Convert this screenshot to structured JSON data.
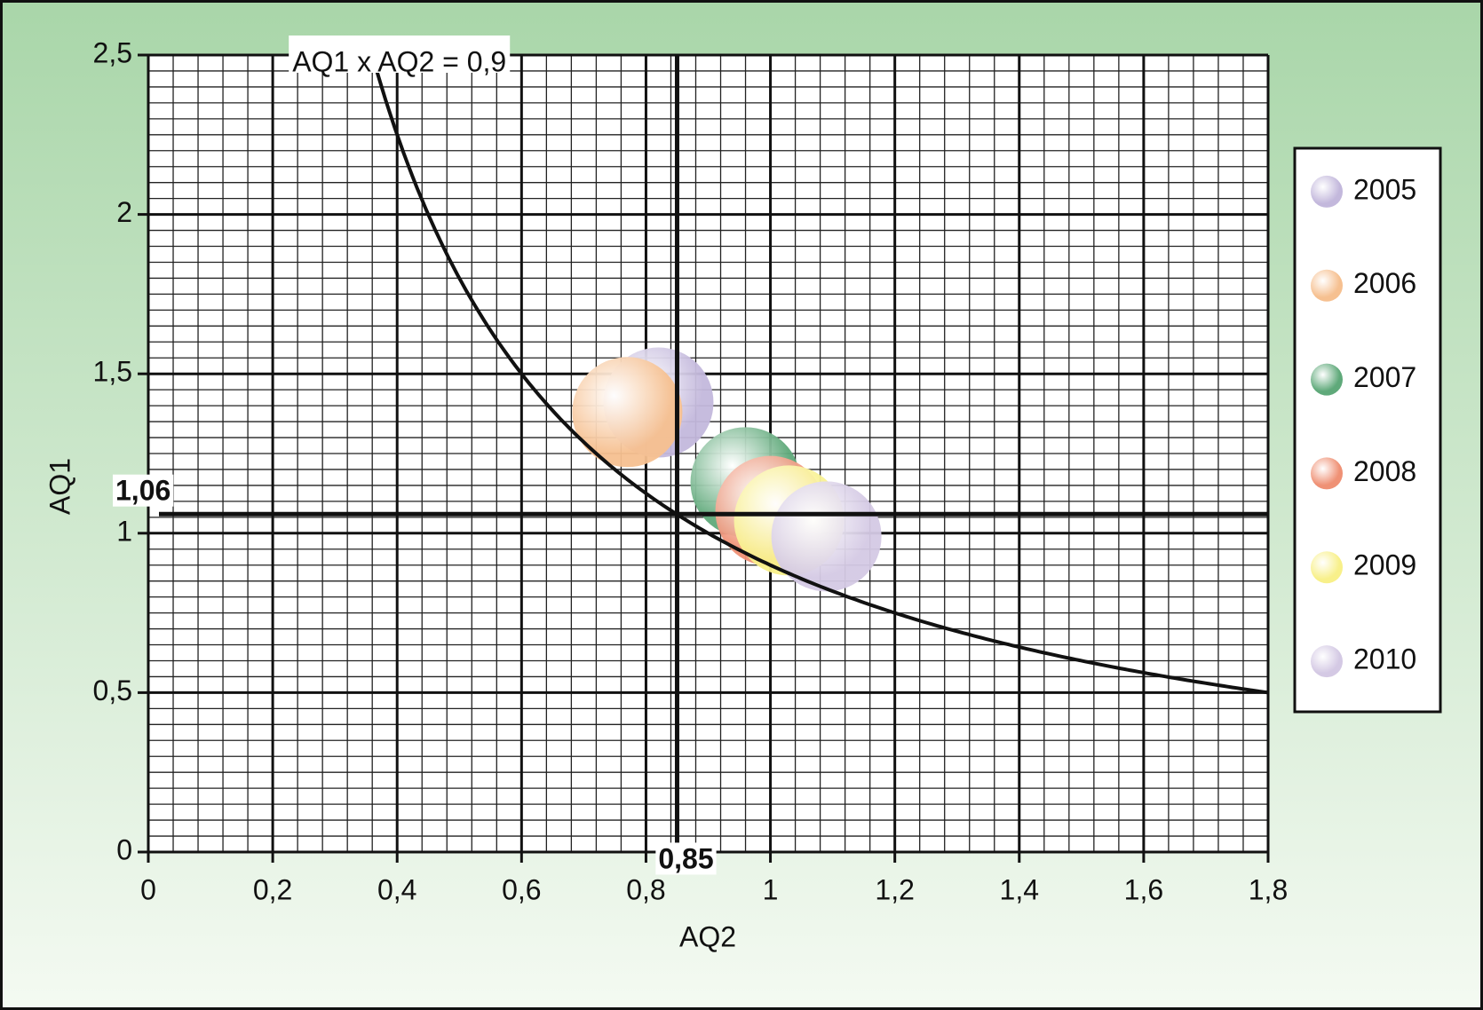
{
  "chart_data": {
    "type": "scatter",
    "xlabel": "AQ2",
    "ylabel": "AQ1",
    "xlim": [
      0,
      1.8
    ],
    "ylim": [
      0,
      2.5
    ],
    "xticks": [
      0,
      {
        "value": 0.2,
        "label": "0,2"
      },
      {
        "value": 0.4,
        "label": "0,4"
      },
      {
        "value": 0.6,
        "label": "0,6"
      },
      {
        "value": 0.8,
        "label": "0,8"
      },
      1,
      {
        "value": 1.2,
        "label": "1,2"
      },
      {
        "value": 1.4,
        "label": "1,4"
      },
      {
        "value": 1.6,
        "label": "1,6"
      },
      {
        "value": 1.8,
        "label": "1,8"
      }
    ],
    "yticks": [
      0,
      {
        "value": 0.5,
        "label": "0,5"
      },
      1,
      {
        "value": 1.5,
        "label": "1,5"
      },
      2,
      {
        "value": 2.5,
        "label": "2,5"
      }
    ],
    "grid": true,
    "minor_grid": {
      "x": 0.04,
      "y": 0.05
    },
    "legend": "right",
    "curve": {
      "value": 0.9,
      "label": "AQ1 x AQ2 = 0,9"
    },
    "reference_lines": {
      "x": {
        "value": 0.85,
        "label": "0,85"
      },
      "y": {
        "value": 1.06,
        "label": "1,06"
      }
    },
    "series": [
      {
        "name": "2005",
        "color": "#c3b8dc",
        "x": [
          0.82
        ],
        "values": [
          1.41
        ]
      },
      {
        "name": "2006",
        "color": "#f6c090",
        "x": [
          0.77
        ],
        "values": [
          1.38
        ]
      },
      {
        "name": "2007",
        "color": "#5fa97a",
        "x": [
          0.96
        ],
        "values": [
          1.16
        ]
      },
      {
        "name": "2008",
        "color": "#ef9175",
        "x": [
          1.0
        ],
        "values": [
          1.07
        ]
      },
      {
        "name": "2009",
        "color": "#f8f08a",
        "x": [
          1.03
        ],
        "values": [
          1.04
        ]
      },
      {
        "name": "2010",
        "color": "#d4c9e4",
        "x": [
          1.09
        ],
        "values": [
          0.99
        ]
      }
    ]
  }
}
